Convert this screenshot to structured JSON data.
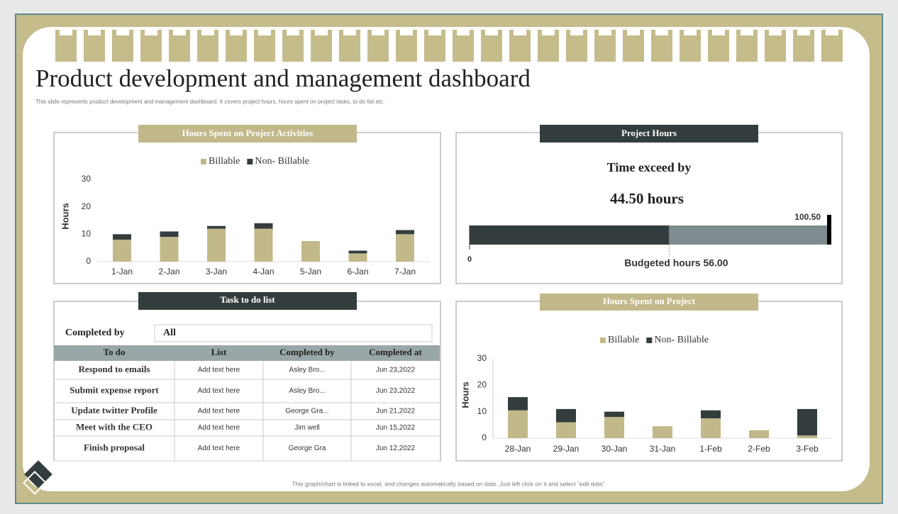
{
  "header": {
    "title": "Product development and management dashboard",
    "subtitle": "This slide represents product development and management  dashboard. It covers project hours, hours spent on project tasks, to do list etc."
  },
  "chart_data": [
    {
      "type": "bar",
      "stacked": true,
      "title": "Hours Spent on Project Activities",
      "y_label": "Hours",
      "categories": [
        "1-Jan",
        "2-Jan",
        "3-Jan",
        "4-Jan",
        "5-Jan",
        "6-Jan",
        "7-Jan"
      ],
      "series": [
        {
          "name": "Billable",
          "color": "#c2b98a",
          "values": [
            8,
            9,
            12,
            12,
            7.5,
            3,
            10
          ]
        },
        {
          "name": "Non- Billable",
          "color": "#343d3e",
          "values": [
            2,
            2,
            1,
            2,
            0,
            1,
            1.5
          ]
        }
      ],
      "ylim": [
        0,
        30
      ],
      "yticks": [
        0,
        10,
        20,
        30
      ],
      "legend": "top"
    },
    {
      "type": "bar",
      "stacked": true,
      "title": "Hours Spent on Project",
      "y_label": "Hours",
      "categories": [
        "28-Jan",
        "29-Jan",
        "30-Jan",
        "31-Jan",
        "1-Feb",
        "2-Feb",
        "3-Feb"
      ],
      "series": [
        {
          "name": "Billable",
          "color": "#c2b98a",
          "values": [
            10.5,
            6,
            8,
            4.5,
            7.5,
            3,
            1
          ]
        },
        {
          "name": "Non- Billable",
          "color": "#343d3e",
          "values": [
            5,
            5,
            2,
            0,
            3,
            0,
            10
          ]
        }
      ],
      "ylim": [
        0,
        30
      ],
      "yticks": [
        0,
        10,
        20,
        30
      ],
      "legend": "top"
    }
  ],
  "project_hours": {
    "title": "Project Hours",
    "heading": "Time exceed by",
    "exceed": "44.50 hours",
    "min": 0,
    "max": 100.5,
    "max_label": "100.50",
    "budget": 56,
    "budget_label": "Budgeted hours 56.00",
    "budget_color": "#343d3e",
    "rest_color": "#7e8c8f"
  },
  "task_list": {
    "title": "Task to do list",
    "filter_label": "Completed by",
    "filter_value": "All",
    "columns": [
      "To do",
      "List",
      "Completed by",
      "Completed at"
    ],
    "rows": [
      [
        "Respond to emails",
        "Add text here",
        "Asley Bro...",
        "Jun 23,2022"
      ],
      [
        "Submit expense report",
        "Add text here",
        "Asley Bro...",
        "Jun 23,2022"
      ],
      [
        "Update twitter Profile",
        "Add text here",
        "George Gra...",
        "Jun 21,2022"
      ],
      [
        "Meet with the CEO",
        "Add text here",
        "Jim well",
        "Jun 15,2022"
      ],
      [
        "Finish proposal",
        "Add text here",
        "George Gra",
        "Jun 12,2022"
      ]
    ]
  },
  "footer": "This graph/chart is linked to excel, and changes automatically based on data. Just left click on it and select “edit data”."
}
